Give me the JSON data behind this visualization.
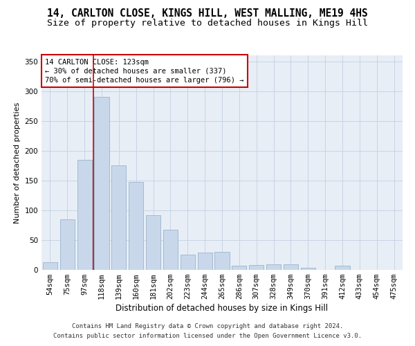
{
  "title1": "14, CARLTON CLOSE, KINGS HILL, WEST MALLING, ME19 4HS",
  "title2": "Size of property relative to detached houses in Kings Hill",
  "xlabel": "Distribution of detached houses by size in Kings Hill",
  "ylabel": "Number of detached properties",
  "categories": [
    "54sqm",
    "75sqm",
    "97sqm",
    "118sqm",
    "139sqm",
    "160sqm",
    "181sqm",
    "202sqm",
    "223sqm",
    "244sqm",
    "265sqm",
    "286sqm",
    "307sqm",
    "328sqm",
    "349sqm",
    "370sqm",
    "391sqm",
    "412sqm",
    "433sqm",
    "454sqm",
    "475sqm"
  ],
  "values": [
    13,
    85,
    185,
    290,
    175,
    147,
    92,
    67,
    26,
    29,
    30,
    7,
    8,
    9,
    9,
    4,
    0,
    7,
    0,
    0,
    0
  ],
  "bar_color": "#c8d8ea",
  "bar_edge_color": "#9ab4cc",
  "red_line_index": 2.5,
  "annotation_text": "14 CARLTON CLOSE: 123sqm\n← 30% of detached houses are smaller (337)\n70% of semi-detached houses are larger (796) →",
  "annotation_box_color": "#ffffff",
  "annotation_box_edge_color": "#cc0000",
  "ylim": [
    0,
    360
  ],
  "yticks": [
    0,
    50,
    100,
    150,
    200,
    250,
    300,
    350
  ],
  "grid_color": "#c8d4e4",
  "bg_color": "#e8eef6",
  "footer1": "Contains HM Land Registry data © Crown copyright and database right 2024.",
  "footer2": "Contains public sector information licensed under the Open Government Licence v3.0.",
  "title1_fontsize": 10.5,
  "title2_fontsize": 9.5,
  "xlabel_fontsize": 8.5,
  "ylabel_fontsize": 8,
  "tick_fontsize": 7.5,
  "ann_fontsize": 7.5,
  "footer_fontsize": 6.5
}
